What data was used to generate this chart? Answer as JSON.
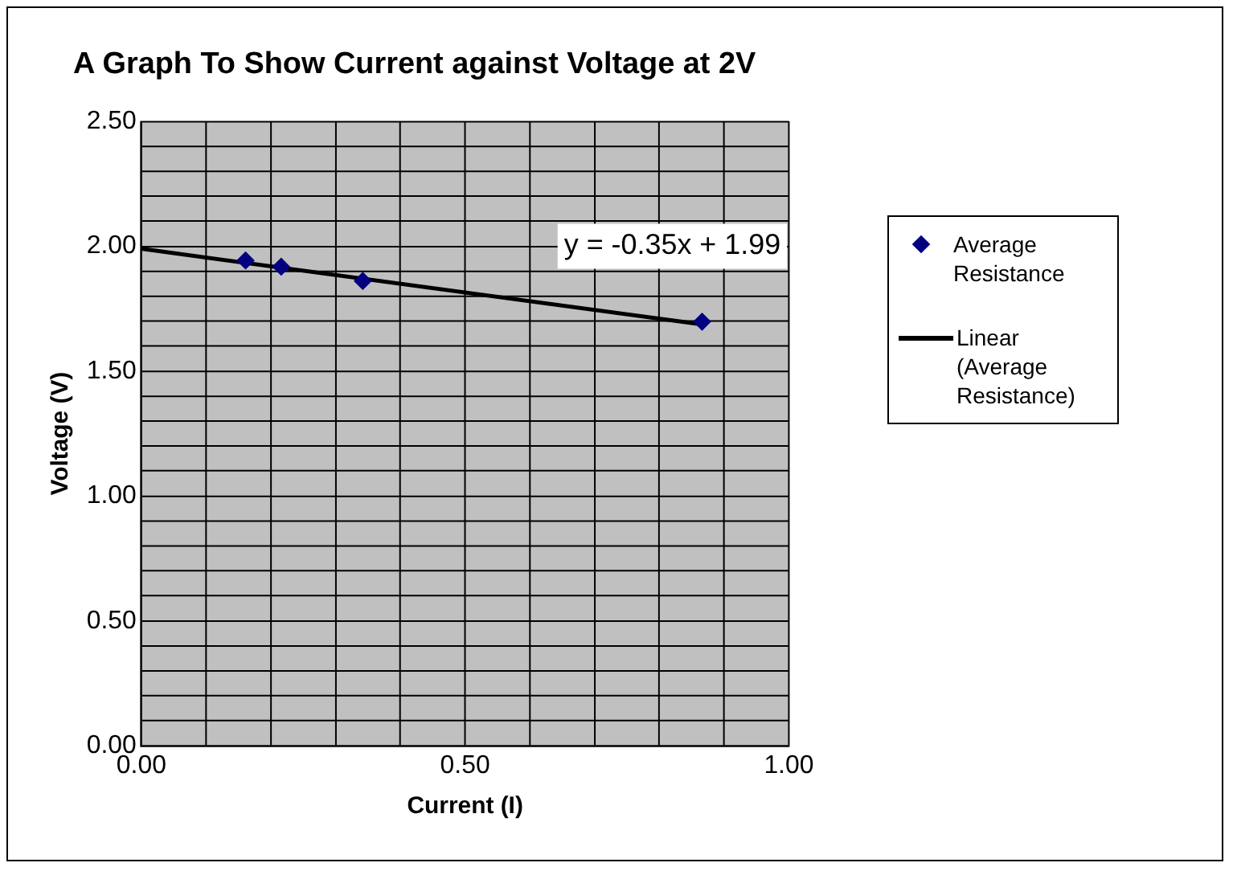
{
  "chart_data": {
    "type": "scatter",
    "title": "A Graph To Show Current against Voltage at 2V",
    "xlabel": "Current (I)",
    "ylabel": "Voltage (V)",
    "series": [
      {
        "name": "Average Resistance",
        "type": "scatter",
        "color": "#000080",
        "marker": "diamond",
        "x": [
          0.161,
          0.216,
          0.342,
          0.866
        ],
        "values": [
          1.943,
          1.918,
          1.861,
          1.698
        ]
      },
      {
        "name": "Linear (Average Resistance)",
        "type": "line",
        "color": "#000000",
        "marker": "none",
        "line_style": "solid",
        "x": [
          0,
          0.866
        ],
        "values": [
          1.99,
          1.687
        ]
      }
    ],
    "annotations": [
      "y = -0.35x + 1.99"
    ],
    "xlim": [
      0,
      1
    ],
    "ylim": [
      0,
      2.5
    ],
    "xticks": [
      {
        "value": 0,
        "label": "0.00"
      },
      {
        "value": 0.1,
        "label": null
      },
      {
        "value": 0.2,
        "label": null
      },
      {
        "value": 0.3,
        "label": null
      },
      {
        "value": 0.4,
        "label": null
      },
      {
        "value": 0.5,
        "label": "0.50"
      },
      {
        "value": 0.6,
        "label": null
      },
      {
        "value": 0.7,
        "label": null
      },
      {
        "value": 0.8,
        "label": null
      },
      {
        "value": 0.9,
        "label": null
      },
      {
        "value": 1,
        "label": "1.00"
      }
    ],
    "yticks": [
      {
        "value": 0,
        "label": "0.00"
      },
      {
        "value": 0.1,
        "label": null
      },
      {
        "value": 0.2,
        "label": null
      },
      {
        "value": 0.3,
        "label": null
      },
      {
        "value": 0.4,
        "label": null
      },
      {
        "value": 0.5,
        "label": "0.50"
      },
      {
        "value": 0.6,
        "label": null
      },
      {
        "value": 0.7,
        "label": null
      },
      {
        "value": 0.8,
        "label": null
      },
      {
        "value": 0.9,
        "label": null
      },
      {
        "value": 1,
        "label": "1.00"
      },
      {
        "value": 1.1,
        "label": null
      },
      {
        "value": 1.2,
        "label": null
      },
      {
        "value": 1.3,
        "label": null
      },
      {
        "value": 1.4,
        "label": null
      },
      {
        "value": 1.5,
        "label": "1.50"
      },
      {
        "value": 1.6,
        "label": null
      },
      {
        "value": 1.7,
        "label": null
      },
      {
        "value": 1.8,
        "label": null
      },
      {
        "value": 1.9,
        "label": null
      },
      {
        "value": 2,
        "label": "2.00"
      },
      {
        "value": 2.1,
        "label": null
      },
      {
        "value": 2.2,
        "label": null
      },
      {
        "value": 2.3,
        "label": null
      },
      {
        "value": 2.4,
        "label": null
      },
      {
        "value": 2.5,
        "label": "2.50"
      }
    ],
    "grid": true,
    "legend": "right"
  }
}
